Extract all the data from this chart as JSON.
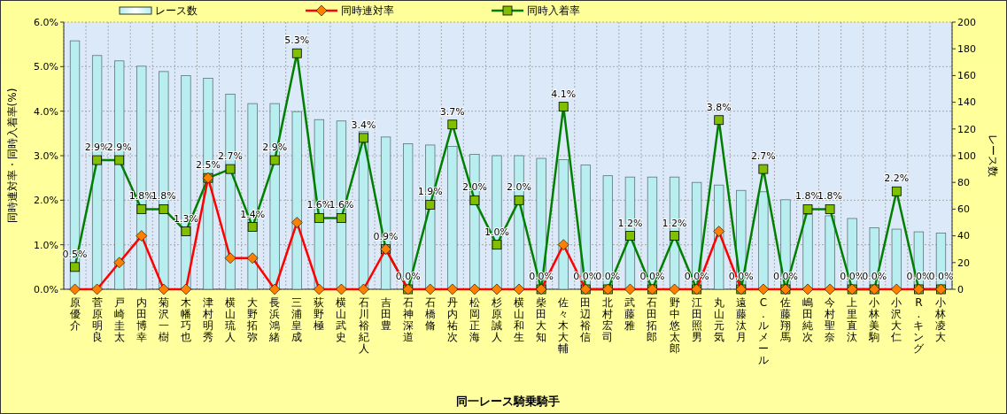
{
  "chart_data": {
    "type": "line",
    "xlabel": "同一レース騎乗騎手",
    "ylabel": "同時連対率・同時入着率(%)",
    "y2label": "レース数",
    "categories": [
      "原優介",
      "菅原明良",
      "戸崎圭太",
      "内田博幸",
      "菊沢一樹",
      "木幡巧也",
      "津村明秀",
      "横山琉人",
      "大野拓弥",
      "長浜鴻緒",
      "三浦皇成",
      "荻野極",
      "横山武史",
      "石川裕紀人",
      "吉田豊",
      "石神深道",
      "石橋脩",
      "丹内祐次",
      "松岡正海",
      "杉原誠人",
      "横山和生",
      "柴田大知",
      "佐々木大輔",
      "田辺裕信",
      "北村宏司",
      "武藤雅",
      "石田拓郎",
      "野中悠太郎",
      "江田照男",
      "丸山元気",
      "遠藤汰月",
      "C.ルメール",
      "佐藤翔馬",
      "嶋田純次",
      "今村聖奈",
      "上里直汰",
      "小林美駒",
      "小沢大仁",
      "R.キング",
      "小林凌大"
    ],
    "series": [
      {
        "name": "レース数",
        "type": "bar",
        "axis": "y2",
        "color": "#b8eef0",
        "values": [
          186,
          175,
          171,
          167,
          163,
          160,
          158,
          146,
          139,
          139,
          133,
          127,
          126,
          118,
          114,
          109,
          108,
          107,
          101,
          100,
          100,
          98,
          97,
          93,
          85,
          84,
          84,
          84,
          80,
          78,
          74,
          73,
          67,
          56,
          55,
          53,
          46,
          45,
          43,
          42
        ]
      },
      {
        "name": "同時連対率",
        "marker": "diamond",
        "color": "#ff0000",
        "values": [
          0,
          0,
          0.6,
          1.2,
          0,
          0,
          2.5,
          0.7,
          0.7,
          0,
          1.5,
          0,
          0,
          0,
          0.9,
          0,
          0,
          0,
          0,
          0,
          0,
          0,
          1.0,
          0,
          0,
          0,
          0,
          0,
          0,
          1.3,
          0,
          0,
          0,
          0,
          0,
          0,
          0,
          0,
          0,
          0
        ]
      },
      {
        "name": "同時入着率",
        "marker": "square",
        "color": "#008000",
        "values": [
          0.5,
          2.9,
          2.9,
          1.8,
          1.8,
          1.3,
          2.5,
          2.7,
          1.4,
          2.9,
          5.3,
          1.6,
          1.6,
          3.4,
          0.9,
          0.0,
          1.9,
          3.7,
          2.0,
          1.0,
          2.0,
          0.0,
          4.1,
          0.0,
          0.0,
          1.2,
          0.0,
          1.2,
          0.0,
          3.8,
          0.0,
          2.7,
          0.0,
          1.8,
          1.8,
          0.0,
          0.0,
          2.2,
          0.0,
          0.0
        ],
        "value_labels": [
          "0.5%",
          "2.9%",
          "2.9%",
          "1.8%",
          "1.8%",
          "1.3%",
          "2.5%",
          "2.7%",
          "1.4%",
          "2.9%",
          "5.3%",
          "1.6%",
          "1.6%",
          "3.4%",
          "0.9%",
          "0.0%",
          "1.9%",
          "3.7%",
          "2.0%",
          "1.0%",
          "2.0%",
          "0.0%",
          "4.1%",
          "0.0%",
          "0.0%",
          "1.2%",
          "0.0%",
          "1.2%",
          "0.0%",
          "3.8%",
          "0.0%",
          "2.7%",
          "0.0%",
          "1.8%",
          "1.8%",
          "0.0%",
          "0.0%",
          "2.2%",
          "0.0%",
          "0.0%"
        ]
      }
    ],
    "ylim": [
      0,
      6
    ],
    "yticks": [
      {
        "value": 0,
        "label": "0.0%"
      },
      {
        "value": 1,
        "label": "1.0%"
      },
      {
        "value": 2,
        "label": "2.0%"
      },
      {
        "value": 3,
        "label": "3.0%"
      },
      {
        "value": 4,
        "label": "4.0%"
      },
      {
        "value": 5,
        "label": "5.0%"
      },
      {
        "value": 6,
        "label": "6.0%"
      }
    ],
    "y2lim": [
      0,
      200
    ],
    "y2ticks": [
      0,
      20,
      40,
      60,
      80,
      100,
      120,
      140,
      160,
      180,
      200
    ],
    "grid": true,
    "legend": "top"
  }
}
